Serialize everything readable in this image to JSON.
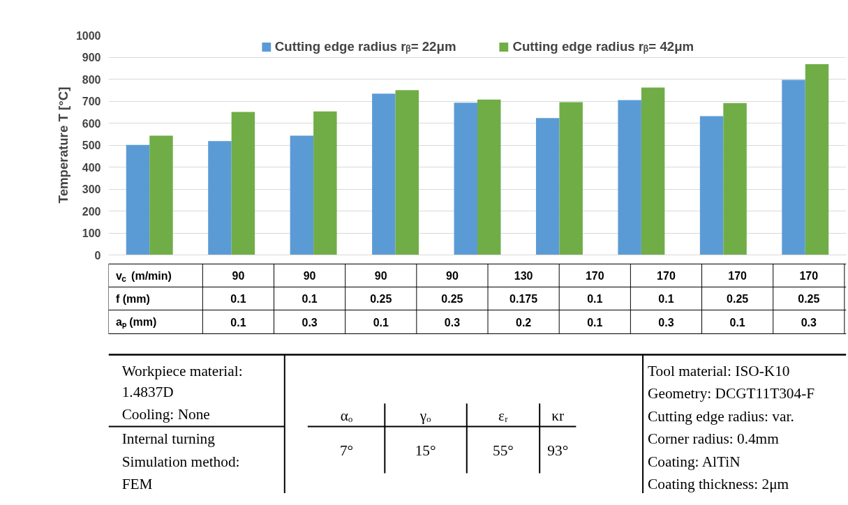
{
  "chart_data": {
    "type": "bar",
    "ylabel": "Temperature T [°C]",
    "categories": [
      null,
      null,
      null,
      null,
      null,
      null,
      null,
      null,
      null
    ],
    "series": [
      {
        "name": "Cutting edge radius rᵦ= 22μm",
        "color": "#5b9bd5",
        "values": [
          501,
          518,
          543,
          734,
          693,
          623,
          705,
          632,
          797
        ]
      },
      {
        "name": "Cutting edge radius rᵦ= 42μm",
        "color": "#70ad47",
        "values": [
          543,
          651,
          653,
          750,
          707,
          695,
          762,
          691,
          868
        ]
      }
    ],
    "ylim": [
      0,
      1000
    ],
    "yticks": [
      0,
      100,
      200,
      300,
      400,
      500,
      600,
      700,
      800,
      900,
      1000
    ],
    "grid": "y",
    "legend": "top",
    "annotations": [
      "v$_{c}$ (m/min)",
      "90",
      "90",
      "90",
      "90",
      "130",
      "170",
      "170",
      "170",
      "170",
      "f (mm)",
      "0.1",
      "0.1",
      "0.25",
      "0.25",
      "0.175",
      "0.1",
      "0.1",
      "0.25",
      "0.25",
      "aₚ (mm)",
      "0.1",
      "0.3",
      "0.1",
      "0.3",
      "0.2",
      "0.1",
      "0.3",
      "0.1",
      "0.3",
      "Workpiece material:",
      "1.4837D",
      "Cooling: None",
      "Internal turning",
      "Simulation method:",
      "FEM",
      "αₒ",
      "γₒ",
      "εᵣ",
      "κr",
      "7°",
      "15°",
      "55°",
      "93°",
      "Tool material: ISO-K10",
      "Geometry: DCGT11T304-F",
      "Cutting edge radius: var.",
      "Corner radius: 0.4mm",
      "Coating: AlTiN",
      "Coating thickness: 2μm"
    ]
  }
}
